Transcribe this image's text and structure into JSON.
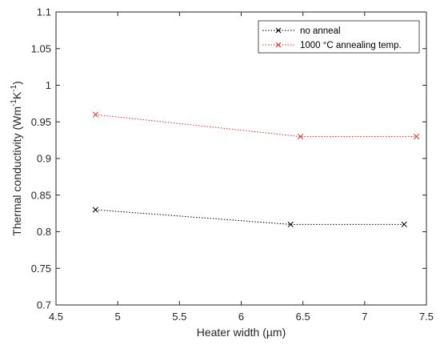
{
  "chart_data": {
    "type": "line",
    "xlabel": "Heater width (µm)",
    "ylabel": {
      "prefix": "Thermal conductivity (Wm",
      "sup1": "-1",
      "mid": "K",
      "sup2": "-1",
      "suffix": ")"
    },
    "xlim": [
      4.5,
      7.5
    ],
    "ylim": [
      0.7,
      1.1
    ],
    "xticks": [
      "4.5",
      "5",
      "5.5",
      "6",
      "6.5",
      "7",
      "7.5"
    ],
    "yticks": [
      "0.7",
      "0.75",
      "0.8",
      "0.85",
      "0.9",
      "0.95",
      "1",
      "1.05",
      "1.1"
    ],
    "grid": false,
    "legend_position": "top-right",
    "series": [
      {
        "name": "no anneal",
        "color": "#000000",
        "line_style": "dotted",
        "marker": "x",
        "x": [
          4.82,
          6.4,
          7.32
        ],
        "y": [
          0.83,
          0.81,
          0.81
        ]
      },
      {
        "name": "1000 °C annealing temp.",
        "color": "#e8322d",
        "line_style": "dotted",
        "marker": "x",
        "x": [
          4.82,
          6.48,
          7.42
        ],
        "y": [
          0.96,
          0.93,
          0.93
        ]
      }
    ]
  }
}
